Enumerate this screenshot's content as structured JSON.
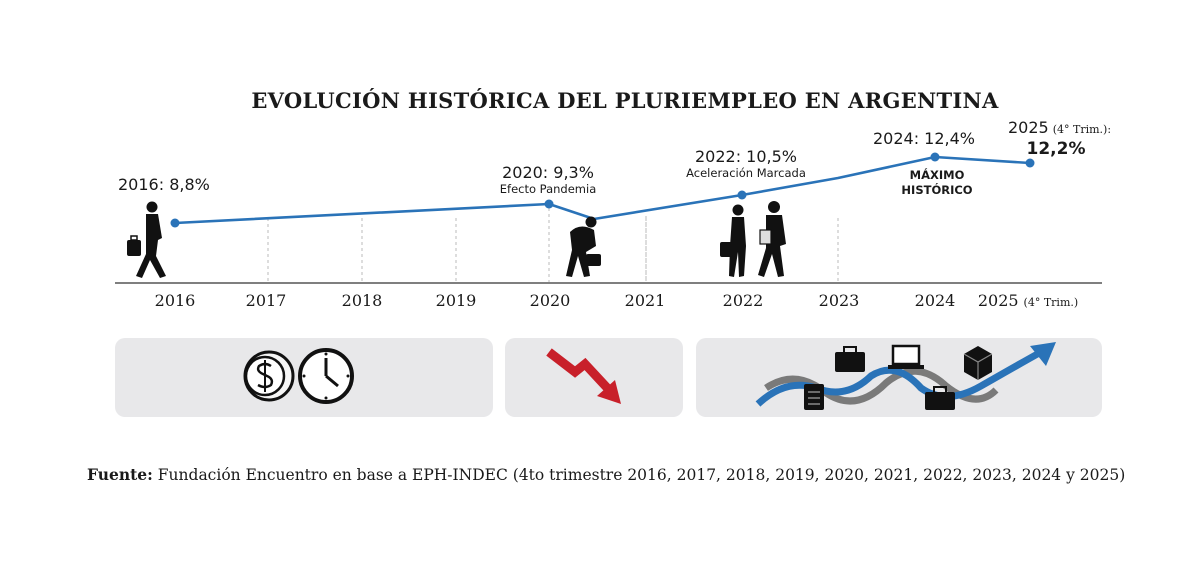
{
  "chart_data": {
    "type": "line",
    "title": "EVOLUCIÓN HISTÓRICA DEL PLURIEMPLEO EN ARGENTINA",
    "x": [
      "2016",
      "2017",
      "2018",
      "2019",
      "2020",
      "2021",
      "2022",
      "2023",
      "2024",
      "2025"
    ],
    "x_tick_suffix_last": "(4° Trim.)",
    "series": [
      {
        "values": [
          8.8,
          8.9,
          9.0,
          9.1,
          9.3,
          8.9,
          10.5,
          11.3,
          12.4,
          12.2
        ]
      }
    ],
    "ylim": [
      7.0,
      13.0
    ],
    "unit": "%",
    "grid": "vertical-dashed",
    "line_color": "#2a73b8",
    "annotations": [
      {
        "x_index": 0,
        "label": "2016: 8,8%",
        "sub": ""
      },
      {
        "x_index": 4,
        "label": "2020: 9,3%",
        "sub": "Efecto Pandemia"
      },
      {
        "x_index": 6,
        "label": "2022: 10,5%",
        "sub": "Aceleración Marcada"
      },
      {
        "x_index": 8,
        "label": "2024: 12,4%",
        "sub_bold_1": "MÁXIMO",
        "sub_bold_2": "HISTÓRICO"
      },
      {
        "x_index": 9,
        "label_pre": "2025",
        "label_note": "(4° Trim.):",
        "label_value": "12,2%"
      }
    ]
  },
  "icons": {
    "left_panel": [
      "dollar-coin-icon",
      "clock-icon"
    ],
    "mid_panel": [
      "downward-arrow-icon"
    ],
    "right_panel": [
      "briefcase-icon",
      "laptop-icon",
      "box-icon",
      "document-icon",
      "upward-trend-arrow-icon"
    ]
  },
  "colors": {
    "line": "#2a73b8",
    "panel": "#e8e8ea",
    "red_arrow": "#c8202a",
    "grey_wave": "#7a7a7a"
  },
  "footer": {
    "label": "Fuente:",
    "text": " Fundación Encuentro en base a EPH-INDEC (4to trimestre 2016, 2017, 2018, 2019, 2020, 2021, 2022, 2023, 2024 y 2025)"
  }
}
